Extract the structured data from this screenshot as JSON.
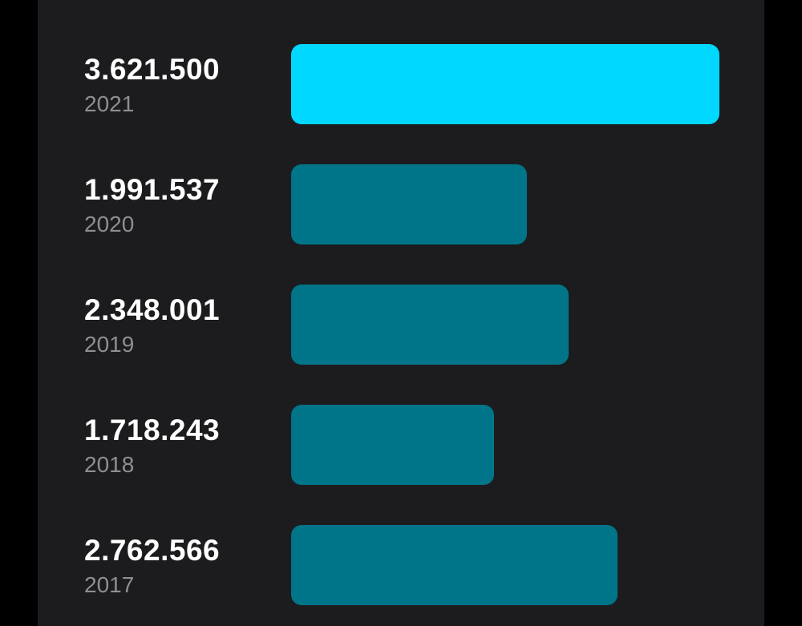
{
  "chart_data": {
    "type": "bar",
    "orientation": "horizontal",
    "categories": [
      "2021",
      "2020",
      "2019",
      "2018",
      "2017"
    ],
    "values": [
      3621500,
      1991537,
      2348001,
      1718243,
      2762566
    ],
    "value_labels": [
      "3.621.500",
      "1.991.537",
      "2.348.001",
      "1.718.243",
      "2.762.566"
    ],
    "highlight_index": 0,
    "colors": {
      "highlight": "#00d8ff",
      "default": "#00758a"
    },
    "title": "",
    "xlabel": "",
    "ylabel": ""
  }
}
